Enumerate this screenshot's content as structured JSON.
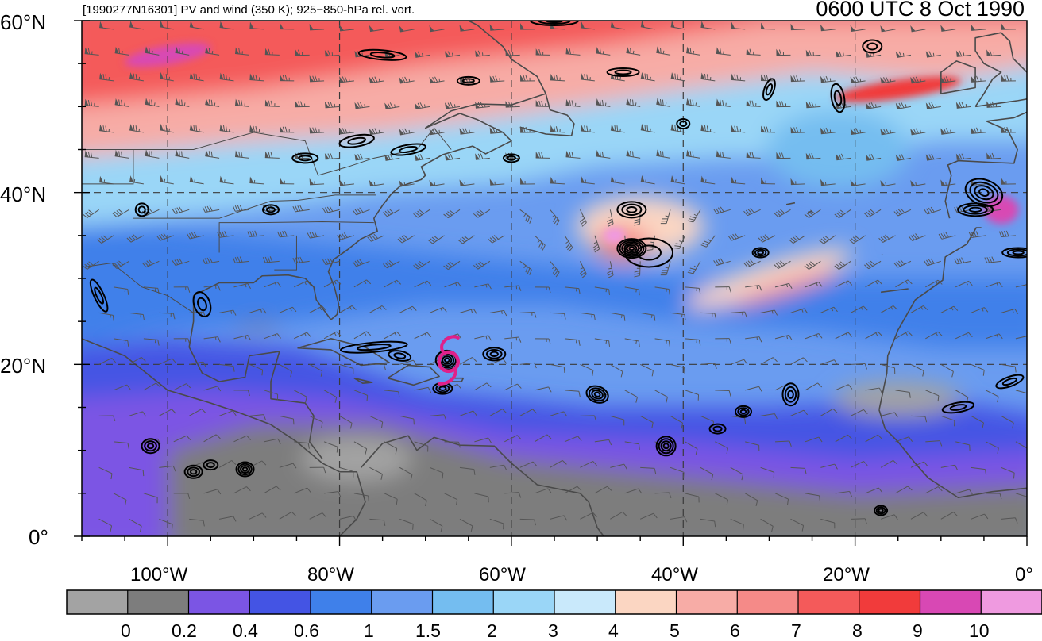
{
  "header": {
    "title_left": "[1990277N16301] PV and wind (350 K); 925−850-hPa rel. vort.",
    "title_right": "0600 UTC 8 Oct 1990"
  },
  "map": {
    "region": "North Atlantic",
    "lon_range": [
      -110,
      0
    ],
    "lat_range": [
      0,
      60
    ],
    "lat_labels": [
      "60°N",
      "40°N",
      "20°N",
      "0°"
    ],
    "lon_labels": [
      "100°W",
      "80°W",
      "60°W",
      "40°W",
      "20°W",
      "0°"
    ],
    "storm_marker": {
      "symbol": "tropical-cyclone",
      "lon": -67.5,
      "lat": 20.5,
      "color": "#e0208a"
    }
  },
  "colorbar": {
    "labels": [
      "0",
      "0.2",
      "0.4",
      "0.6",
      "1",
      "1.5",
      "2",
      "3",
      "4",
      "5",
      "6",
      "7",
      "8",
      "9",
      "10"
    ],
    "colors": [
      "#a3a3a3",
      "#7d7d7d",
      "#7b55e4",
      "#4454e4",
      "#3f80ea",
      "#6a9cf0",
      "#74bdf0",
      "#9ad6f7",
      "#c9e9fb",
      "#fbd6c2",
      "#f7aca6",
      "#f58a88",
      "#f45a5a",
      "#f13b3b",
      "#d848b4",
      "#ef9ae0"
    ]
  }
}
